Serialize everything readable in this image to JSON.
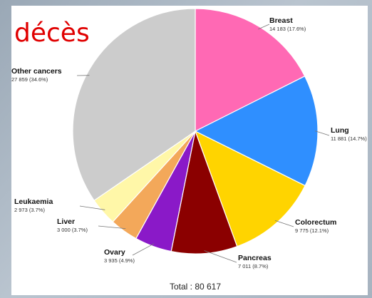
{
  "overlay": {
    "heading": "décès"
  },
  "chart_data": {
    "type": "pie",
    "title": "",
    "total_label": "Total : 80 617",
    "slices": [
      {
        "name": "Breast",
        "value": 14183,
        "value_label": "14 183 (17.6%)",
        "color": "#ff69b4"
      },
      {
        "name": "Lung",
        "value": 11881,
        "value_label": "11 881 (14.7%)",
        "color": "#2f8fff"
      },
      {
        "name": "Colorectum",
        "value": 9775,
        "value_label": "9 775 (12.1%)",
        "color": "#ffd400"
      },
      {
        "name": "Pancreas",
        "value": 7011,
        "value_label": "7 011 (8.7%)",
        "color": "#8b0000"
      },
      {
        "name": "Ovary",
        "value": 3935,
        "value_label": "3 935 (4.9%)",
        "color": "#8a19c8"
      },
      {
        "name": "Liver",
        "value": 3000,
        "value_label": "3 000 (3.7%)",
        "color": "#f3a85a"
      },
      {
        "name": "Leukaemia",
        "value": 2973,
        "value_label": "2 973 (3.7%)",
        "color": "#fff7a8"
      },
      {
        "name": "Other cancers",
        "value": 27859,
        "value_label": "27 859 (34.6%)",
        "color": "#cccccc"
      }
    ]
  }
}
